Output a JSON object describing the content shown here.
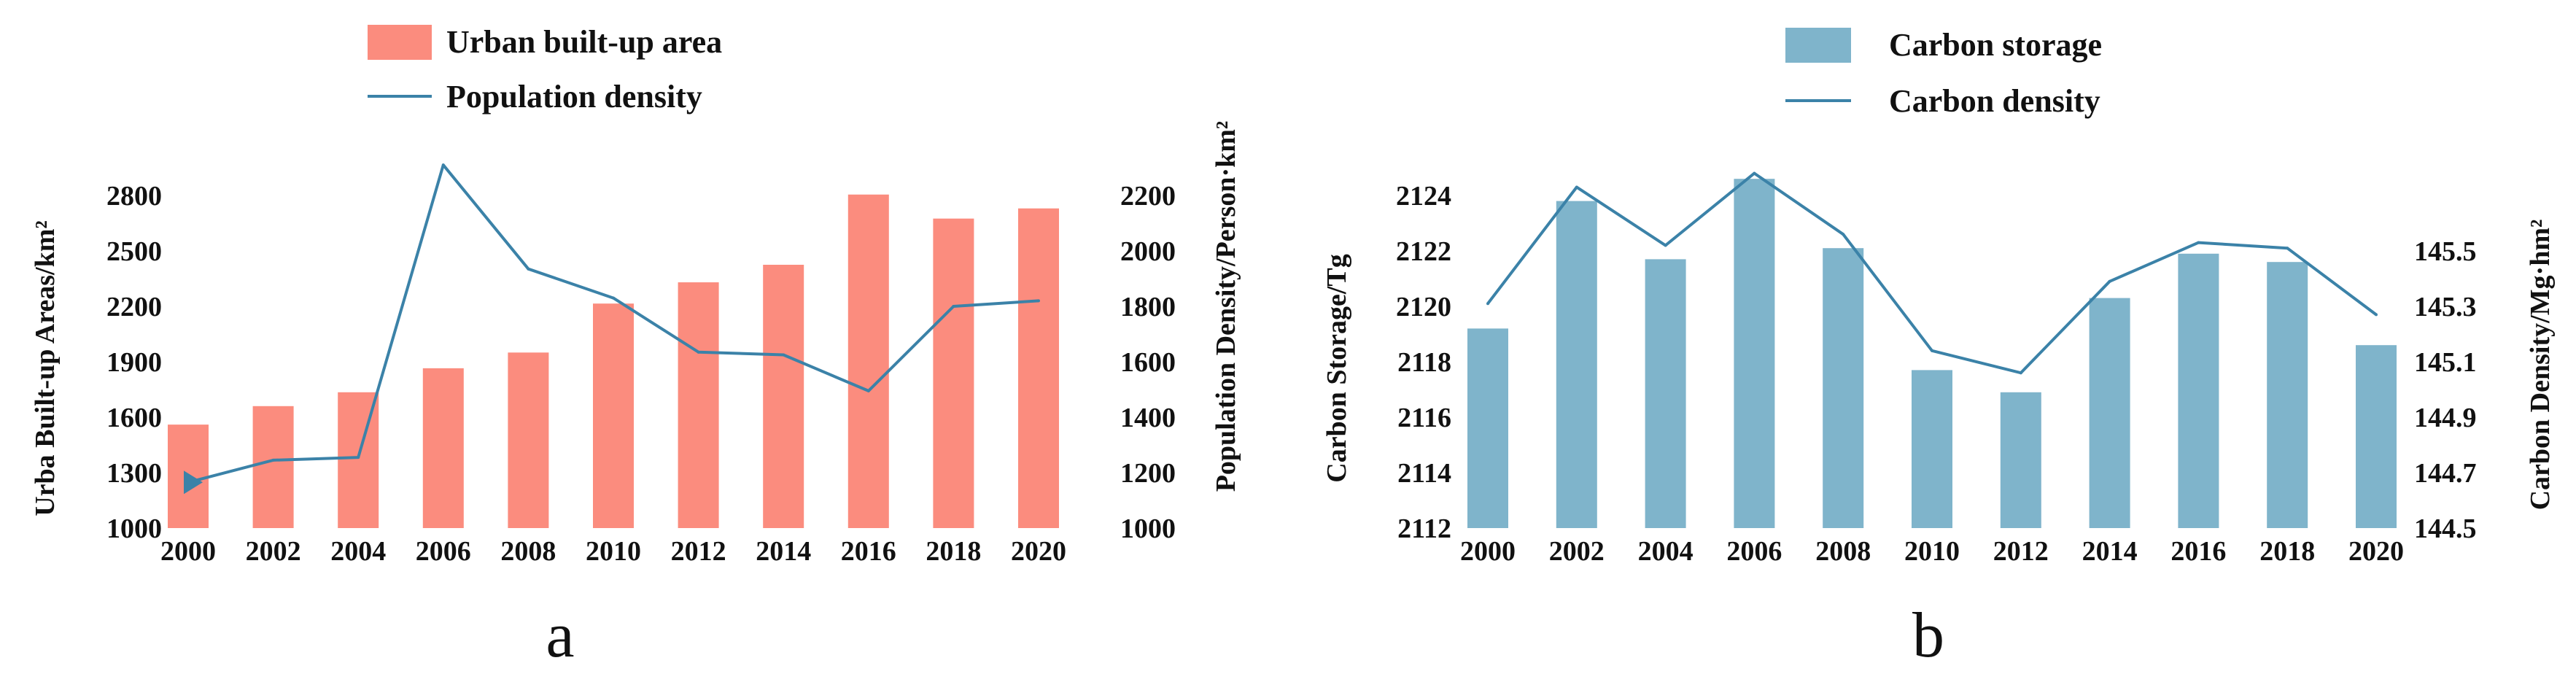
{
  "chart_data": [
    {
      "type": "bar",
      "panel_label": "a",
      "categories": [
        "2000",
        "2002",
        "2004",
        "2006",
        "2008",
        "2010",
        "2012",
        "2014",
        "2016",
        "2018",
        "2020"
      ],
      "series": [
        {
          "name": "Urban built-up area",
          "kind": "bar",
          "axis": "left",
          "color": "#fb8c7e",
          "values": [
            1560,
            1660,
            1735,
            1865,
            1950,
            2215,
            2330,
            2425,
            2805,
            2675,
            2730
          ]
        },
        {
          "name": "Population density",
          "kind": "line",
          "axis": "right",
          "color": "#3b82a8",
          "values": [
            1165,
            1245,
            1255,
            2310,
            1935,
            1830,
            1635,
            1625,
            1495,
            1800,
            1820
          ]
        }
      ],
      "ylabel_left": "Urba  Built-up  Areas/km²",
      "ylabel_right": "Population Density/Person·km²",
      "ylim_left": [
        1000,
        2800
      ],
      "yticks_left": [
        "1000",
        "1300",
        "1600",
        "1900",
        "2200",
        "2500",
        "2800"
      ],
      "ylim_right": [
        1000,
        2200
      ],
      "yticks_right": [
        "1000",
        "1200",
        "1400",
        "1600",
        "1800",
        "2000",
        "2200"
      ],
      "grid": false,
      "legend_position": "top-center"
    },
    {
      "type": "bar",
      "panel_label": "b",
      "categories": [
        "2000",
        "2002",
        "2004",
        "2006",
        "2008",
        "2010",
        "2012",
        "2014",
        "2016",
        "2018",
        "2020"
      ],
      "series": [
        {
          "name": "Carbon storage",
          "kind": "bar",
          "axis": "left",
          "color": "#7fb4cb",
          "values": [
            2119.2,
            2123.8,
            2121.7,
            2124.6,
            2122.1,
            2117.7,
            2116.9,
            2120.3,
            2121.9,
            2121.6,
            2118.6
          ]
        },
        {
          "name": "Carbon density",
          "kind": "line",
          "axis": "right",
          "color": "#3b82a8",
          "values": [
            145.31,
            145.73,
            145.52,
            145.78,
            145.56,
            145.14,
            145.06,
            145.39,
            145.53,
            145.51,
            145.27
          ]
        }
      ],
      "ylabel_left": "Carbon Storage/Tg",
      "ylabel_right": "Carbon Density/Mg·hm²",
      "ylim_left": [
        2112,
        2124
      ],
      "yticks_left": [
        "2112",
        "2114",
        "2116",
        "2118",
        "2120",
        "2122",
        "2124"
      ],
      "ylim_right": [
        144.5,
        145.5
      ],
      "yticks_right": [
        "144.5",
        "144.7",
        "144.9",
        "145.1",
        "145.3",
        "145.5"
      ],
      "grid": false,
      "legend_position": "top-center"
    }
  ]
}
